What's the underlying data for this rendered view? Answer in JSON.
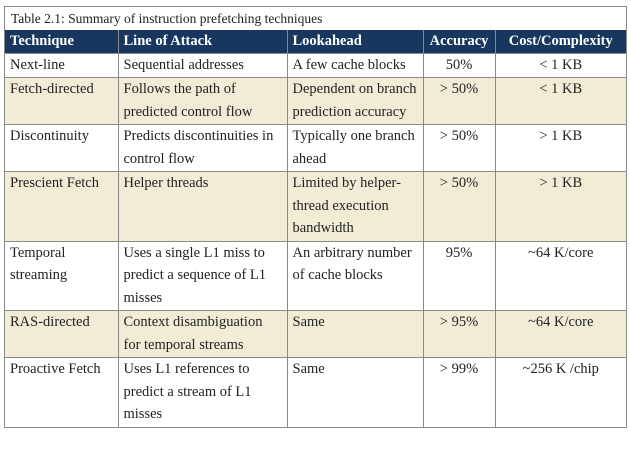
{
  "caption": "Table 2.1: Summary of instruction prefetching techniques",
  "table": {
    "header": [
      "Technique",
      "Line of Attack",
      "Lookahead",
      "Accuracy",
      "Cost/Complexity"
    ],
    "rows": [
      [
        "Next-line",
        "Sequential addresses",
        "A few cache blocks",
        "50%",
        "< 1 KB"
      ],
      [
        "Fetch-directed",
        "Follows the path of predicted control flow",
        "Dependent on branch prediction accuracy",
        "> 50%",
        "< 1 KB"
      ],
      [
        "Discontinuity",
        "Predicts discontinuities in control flow",
        "Typically one branch ahead",
        "> 50%",
        "> 1 KB"
      ],
      [
        "Prescient Fetch",
        "Helper threads",
        "Limited by helper-thread execution bandwidth",
        "> 50%",
        "> 1 KB"
      ],
      [
        "Temporal streaming",
        "Uses a single L1 miss to predict a sequence of L1 misses",
        "An arbitrary number of cache blocks",
        "95%",
        "~64 K/core"
      ],
      [
        "RAS-directed",
        "Context disambiguation for temporal streams",
        "Same",
        "> 95%",
        "~64 K/core"
      ],
      [
        "Proactive Fetch",
        "Uses L1 references to predict a stream of L1 misses",
        "Same",
        "> 99%",
        "~256 K /chip"
      ]
    ]
  }
}
